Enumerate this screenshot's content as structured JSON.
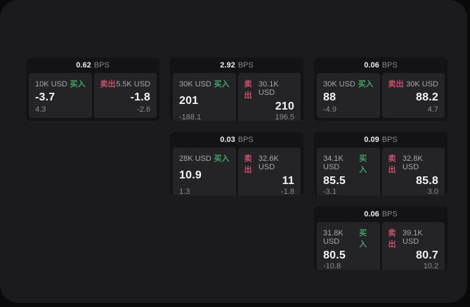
{
  "labels": {
    "buy": "买入",
    "sell": "卖出",
    "bps": "BPS"
  },
  "colors": {
    "buy": "#43a368",
    "sell": "#c9506a",
    "page_bg": "#0a0a0b",
    "panel_bg": "#1b1b1d",
    "card_bg": "#131315",
    "tile_bg": "#242427"
  },
  "cards": [
    {
      "row": 1,
      "col": 1,
      "bps": "0.62",
      "buy": {
        "amount": "10K USD",
        "price": "-3.7",
        "delta": "4.3"
      },
      "sell": {
        "amount": "5.5K USD",
        "price": "-1.8",
        "delta": "-2.6"
      }
    },
    {
      "row": 1,
      "col": 2,
      "bps": "2.92",
      "buy": {
        "amount": "30K USD",
        "price": "201",
        "delta": "-188.1"
      },
      "sell": {
        "amount": "30.1K USD",
        "price": "210",
        "delta": "196.5"
      }
    },
    {
      "row": 1,
      "col": 3,
      "bps": "0.06",
      "buy": {
        "amount": "30K USD",
        "price": "88",
        "delta": "-4.9"
      },
      "sell": {
        "amount": "30K USD",
        "price": "88.2",
        "delta": "4.7"
      }
    },
    {
      "row": 2,
      "col": 2,
      "bps": "0.03",
      "buy": {
        "amount": "28K USD",
        "price": "10.9",
        "delta": "1.3"
      },
      "sell": {
        "amount": "32.6K USD",
        "price": "11",
        "delta": "-1.8"
      }
    },
    {
      "row": 2,
      "col": 3,
      "bps": "0.09",
      "buy": {
        "amount": "34.1K USD",
        "price": "85.5",
        "delta": "-3.1"
      },
      "sell": {
        "amount": "32.8K USD",
        "price": "85.8",
        "delta": "3.0"
      }
    },
    {
      "row": 3,
      "col": 3,
      "bps": "0.06",
      "buy": {
        "amount": "31.8K USD",
        "price": "80.5",
        "delta": "-10.8"
      },
      "sell": {
        "amount": "39.1K USD",
        "price": "80.7",
        "delta": "10.2"
      }
    }
  ]
}
